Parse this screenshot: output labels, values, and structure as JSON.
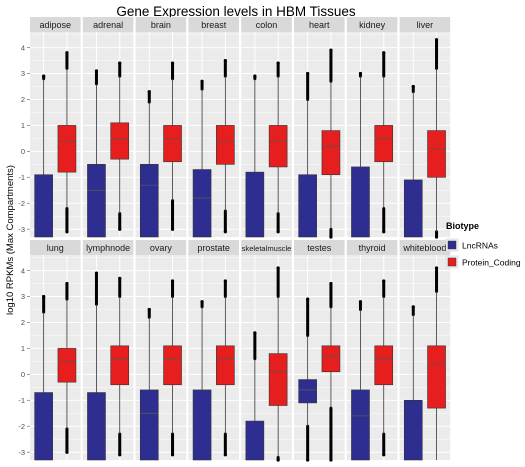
{
  "chart_data": {
    "type": "boxplot",
    "title": "Gene Expression levels in HBM Tissues",
    "ylabel": "log10 RPKMs (Max Compartments)",
    "xlabel": "",
    "ylim": [
      -3.3,
      4.6
    ],
    "yticks": [
      -3,
      -2,
      -1,
      0,
      1,
      2,
      3,
      4
    ],
    "grid": true,
    "facet_layout": "2 rows x 8 columns",
    "legend": {
      "title": "Biotype",
      "placement": "right",
      "entries": [
        {
          "name": "LncRNAs",
          "color": "#2e2e91"
        },
        {
          "name": "Protein_Coding",
          "color": "#e61e1e"
        }
      ]
    },
    "facets": [
      {
        "tissue": "adipose",
        "lnc": {
          "q1": -3.3,
          "median": -3.3,
          "q3": -0.9,
          "whisker_high": 2.8,
          "max": 2.9
        },
        "pc": {
          "q1": -0.8,
          "median": 0.4,
          "q3": 1.0,
          "whisker_low": -2.2,
          "whisker_high": 3.2,
          "min": -3.1,
          "max": 3.8
        }
      },
      {
        "tissue": "adrenal",
        "lnc": {
          "q1": -3.3,
          "median": -1.5,
          "q3": -0.5,
          "whisker_high": 2.6,
          "max": 3.1
        },
        "pc": {
          "q1": -0.3,
          "median": 0.5,
          "q3": 1.1,
          "whisker_low": -2.4,
          "whisker_high": 2.9,
          "min": -3.0,
          "max": 3.4
        }
      },
      {
        "tissue": "brain",
        "lnc": {
          "q1": -3.3,
          "median": -1.3,
          "q3": -0.5,
          "whisker_high": 1.9,
          "max": 2.3
        },
        "pc": {
          "q1": -0.4,
          "median": 0.5,
          "q3": 1.0,
          "whisker_low": -1.9,
          "whisker_high": 2.8,
          "min": -3.0,
          "max": 3.4
        }
      },
      {
        "tissue": "breast",
        "lnc": {
          "q1": -3.3,
          "median": -1.8,
          "q3": -0.7,
          "whisker_high": 2.4,
          "max": 2.7
        },
        "pc": {
          "q1": -0.5,
          "median": 0.4,
          "q3": 1.0,
          "whisker_low": -2.3,
          "whisker_high": 2.9,
          "min": -3.1,
          "max": 3.5
        }
      },
      {
        "tissue": "colon",
        "lnc": {
          "q1": -3.3,
          "median": -3.3,
          "q3": -0.8,
          "whisker_high": 2.8,
          "max": 2.9
        },
        "pc": {
          "q1": -0.6,
          "median": 0.4,
          "q3": 1.0,
          "whisker_low": -2.4,
          "whisker_high": 2.9,
          "min": -3.1,
          "max": 3.4
        }
      },
      {
        "tissue": "heart",
        "lnc": {
          "q1": -3.3,
          "median": -3.3,
          "q3": -0.9,
          "whisker_high": 2.0,
          "max": 3.0
        },
        "pc": {
          "q1": -0.9,
          "median": 0.2,
          "q3": 0.8,
          "whisker_low": -3.0,
          "whisker_high": 2.7,
          "min": -3.3,
          "max": 3.9
        }
      },
      {
        "tissue": "kidney",
        "lnc": {
          "q1": -3.3,
          "median": -3.3,
          "q3": -0.6,
          "whisker_high": 2.9,
          "max": 3.0
        },
        "pc": {
          "q1": -0.4,
          "median": 0.5,
          "q3": 1.0,
          "whisker_low": -2.2,
          "whisker_high": 2.9,
          "min": -3.1,
          "max": 3.8
        }
      },
      {
        "tissue": "liver",
        "lnc": {
          "q1": -3.3,
          "median": -3.3,
          "q3": -1.1,
          "whisker_high": 2.3,
          "max": 2.5
        },
        "pc": {
          "q1": -1.0,
          "median": 0.1,
          "q3": 0.8,
          "whisker_low": -3.1,
          "whisker_high": 3.2,
          "min": -3.3,
          "max": 4.3
        }
      },
      {
        "tissue": "lung",
        "lnc": {
          "q1": -3.3,
          "median": -3.3,
          "q3": -0.7,
          "whisker_high": 2.4,
          "max": 3.0
        },
        "pc": {
          "q1": -0.3,
          "median": 0.5,
          "q3": 1.0,
          "whisker_low": -2.1,
          "whisker_high": 2.9,
          "min": -3.0,
          "max": 3.5
        }
      },
      {
        "tissue": "lymphnode",
        "lnc": {
          "q1": -3.3,
          "median": -3.3,
          "q3": -0.7,
          "whisker_high": 2.7,
          "max": 3.9
        },
        "pc": {
          "q1": -0.4,
          "median": 0.6,
          "q3": 1.1,
          "whisker_low": -2.3,
          "whisker_high": 3.0,
          "min": -3.1,
          "max": 3.7
        }
      },
      {
        "tissue": "ovary",
        "lnc": {
          "q1": -3.3,
          "median": -1.5,
          "q3": -0.6,
          "whisker_high": 2.2,
          "max": 2.5
        },
        "pc": {
          "q1": -0.4,
          "median": 0.6,
          "q3": 1.1,
          "whisker_low": -2.3,
          "whisker_high": 3.0,
          "min": -3.1,
          "max": 3.6
        }
      },
      {
        "tissue": "prostate",
        "lnc": {
          "q1": -3.3,
          "median": -3.3,
          "q3": -0.6,
          "whisker_high": 2.6,
          "max": 2.8
        },
        "pc": {
          "q1": -0.4,
          "median": 0.6,
          "q3": 1.1,
          "whisker_low": -2.3,
          "whisker_high": 3.0,
          "min": -3.1,
          "max": 3.6
        }
      },
      {
        "tissue": "skeletalmuscle",
        "lnc": {
          "q1": -3.3,
          "median": -3.3,
          "q3": -1.8,
          "whisker_high": 0.6,
          "max": 1.6
        },
        "pc": {
          "q1": -1.2,
          "median": 0.1,
          "q3": 0.8,
          "whisker_low": -3.2,
          "whisker_high": 3.0,
          "min": -3.3,
          "max": 4.1
        }
      },
      {
        "tissue": "testes",
        "lnc": {
          "q1": -1.1,
          "median": -0.6,
          "q3": -0.2,
          "whisker_low": -2.0,
          "whisker_high": 1.5,
          "min": -3.3,
          "max": 2.9
        },
        "pc": {
          "q1": 0.1,
          "median": 0.7,
          "q3": 1.1,
          "whisker_low": -1.3,
          "whisker_high": 2.6,
          "min": -3.3,
          "max": 3.5
        }
      },
      {
        "tissue": "thyroid",
        "lnc": {
          "q1": -3.3,
          "median": -1.6,
          "q3": -0.6,
          "whisker_high": 2.5,
          "max": 2.8
        },
        "pc": {
          "q1": -0.4,
          "median": 0.6,
          "q3": 1.1,
          "whisker_low": -2.3,
          "whisker_high": 3.0,
          "min": -3.1,
          "max": 3.6
        }
      },
      {
        "tissue": "whiteblood",
        "lnc": {
          "q1": -3.3,
          "median": -3.3,
          "q3": -1.0,
          "whisker_high": 2.3,
          "max": 2.6
        },
        "pc": {
          "q1": -1.3,
          "median": 0.4,
          "q3": 1.1,
          "whisker_low": -3.3,
          "whisker_high": 3.2,
          "min": -3.3,
          "max": 4.1
        }
      }
    ]
  }
}
